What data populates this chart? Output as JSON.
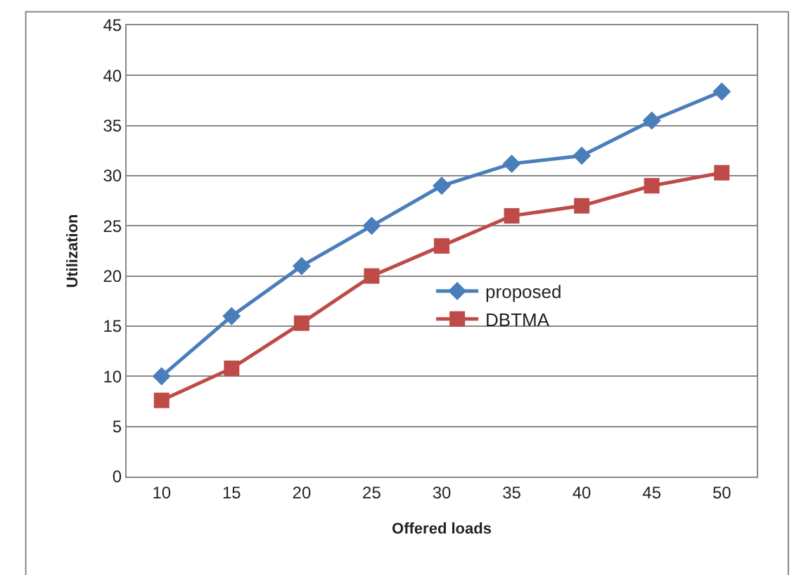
{
  "chart_data": {
    "type": "line",
    "xlabel": "Offered loads",
    "ylabel": "Utilization",
    "categories": [
      "10",
      "15",
      "20",
      "25",
      "30",
      "35",
      "40",
      "45",
      "50"
    ],
    "series": [
      {
        "name": "proposed",
        "color": "#4a7ebb",
        "marker": "diamond",
        "values": [
          10,
          16,
          21,
          25,
          29,
          31.2,
          32,
          35.5,
          38.4
        ]
      },
      {
        "name": "DBTMA",
        "color": "#be4b48",
        "marker": "square",
        "values": [
          7.6,
          10.8,
          15.3,
          20,
          23,
          26,
          27,
          29,
          30.3
        ]
      }
    ],
    "ylim": [
      0,
      45
    ],
    "yticks": [
      0,
      5,
      10,
      15,
      20,
      25,
      30,
      35,
      40,
      45
    ],
    "grid": "y",
    "legend": "center"
  }
}
